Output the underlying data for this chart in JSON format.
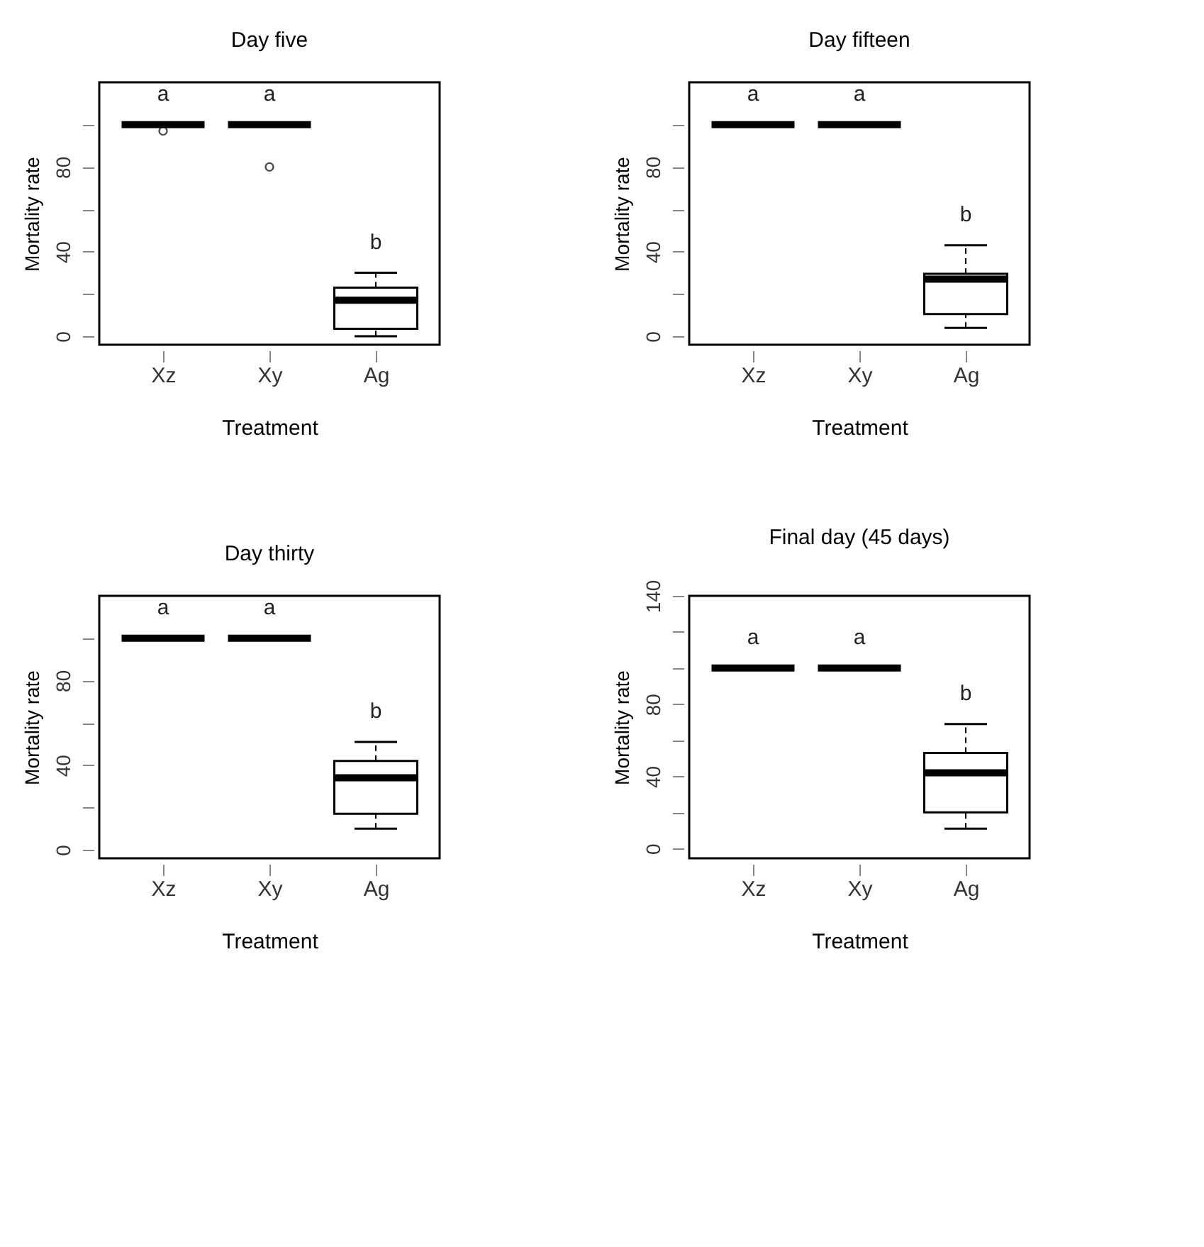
{
  "chart_data": [
    {
      "type": "box",
      "title": "Day five",
      "xlabel": "Treatment",
      "ylabel": "Mortality rate",
      "categories": [
        "Xz",
        "Xy",
        "Ag"
      ],
      "boxes": [
        {
          "low": 100,
          "q1": 100,
          "median": 100,
          "q3": 100,
          "high": 100,
          "outliers": [
            97
          ]
        },
        {
          "low": 100,
          "q1": 100,
          "median": 100,
          "q3": 100,
          "high": 100,
          "outliers": [
            80
          ]
        },
        {
          "low": 0,
          "q1": 3.5,
          "median": 17,
          "q3": 23,
          "high": 30
        }
      ],
      "ylim": [
        -4,
        120
      ],
      "yticks": [
        0,
        {
          "value": 20,
          "label": null
        },
        40,
        {
          "value": 60,
          "label": null
        },
        80,
        {
          "value": 100,
          "label": null
        }
      ],
      "annotations": [
        "a",
        "a",
        "b"
      ]
    },
    {
      "type": "box",
      "title": "Day fifteen",
      "xlabel": "Treatment",
      "ylabel": "Mortality rate",
      "categories": [
        "Xz",
        "Xy",
        "Ag"
      ],
      "boxes": [
        {
          "low": 100,
          "q1": 100,
          "median": 100,
          "q3": 100,
          "high": 100
        },
        {
          "low": 100,
          "q1": 100,
          "median": 100,
          "q3": 100,
          "high": 100
        },
        {
          "low": 4,
          "q1": 10.5,
          "median": 27,
          "q3": 29.5,
          "high": 43
        }
      ],
      "ylim": [
        -4,
        120
      ],
      "yticks": [
        0,
        {
          "value": 20,
          "label": null
        },
        40,
        {
          "value": 60,
          "label": null
        },
        80,
        {
          "value": 100,
          "label": null
        }
      ],
      "annotations": [
        "a",
        "a",
        "b"
      ]
    },
    {
      "type": "box",
      "title": "Day thirty",
      "xlabel": "Treatment",
      "ylabel": "Mortality rate",
      "categories": [
        "Xz",
        "Xy",
        "Ag"
      ],
      "boxes": [
        {
          "low": 100,
          "q1": 100,
          "median": 100,
          "q3": 100,
          "high": 100
        },
        {
          "low": 100,
          "q1": 100,
          "median": 100,
          "q3": 100,
          "high": 100
        },
        {
          "low": 10,
          "q1": 17,
          "median": 34,
          "q3": 42,
          "high": 51
        }
      ],
      "ylim": [
        -4,
        120
      ],
      "yticks": [
        0,
        {
          "value": 20,
          "label": null
        },
        40,
        {
          "value": 60,
          "label": null
        },
        80,
        {
          "value": 100,
          "label": null
        }
      ],
      "annotations": [
        "a",
        "a",
        "b"
      ]
    },
    {
      "type": "box",
      "title": "Final day (45 days)",
      "xlabel": "Treatment",
      "ylabel": "Mortality rate",
      "categories": [
        "Xz",
        "Xy",
        "Ag"
      ],
      "boxes": [
        {
          "low": 100,
          "q1": 100,
          "median": 100,
          "q3": 100,
          "high": 100
        },
        {
          "low": 100,
          "q1": 100,
          "median": 100,
          "q3": 100,
          "high": 100
        },
        {
          "low": 11,
          "q1": 20,
          "median": 42,
          "q3": 53,
          "high": 69
        }
      ],
      "ylim": [
        -5.4,
        140
      ],
      "yticks": [
        0,
        {
          "value": 20,
          "label": null
        },
        40,
        {
          "value": 60,
          "label": null
        },
        80,
        {
          "value": 100,
          "label": null
        },
        {
          "value": 120,
          "label": null
        },
        140
      ],
      "annotations": [
        "a",
        "a",
        "b"
      ]
    }
  ]
}
